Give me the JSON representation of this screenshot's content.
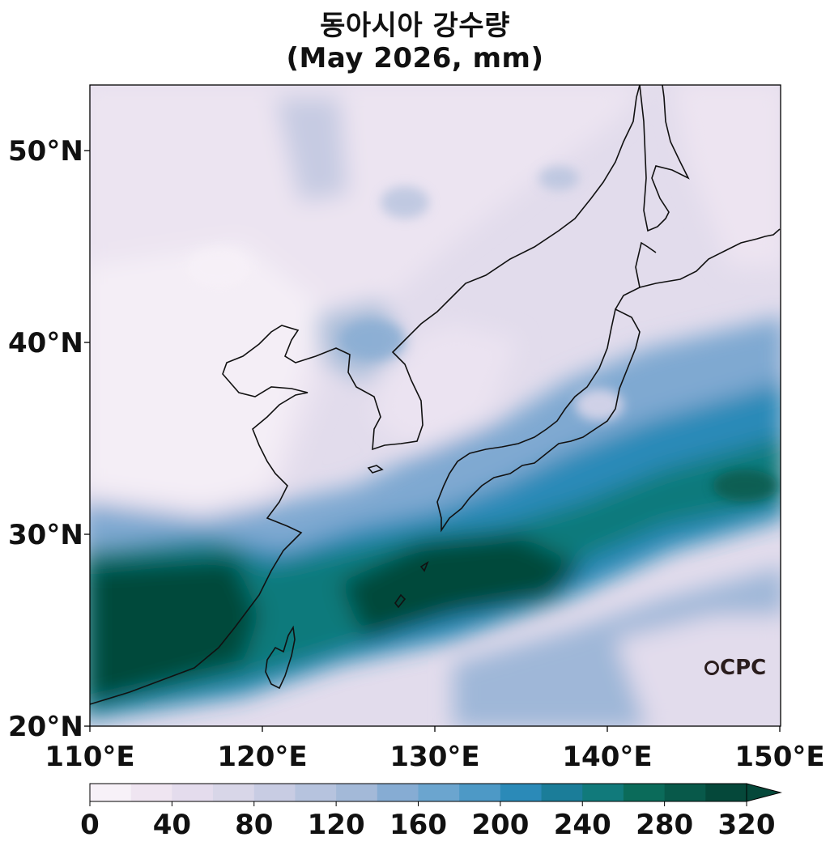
{
  "title": "동아시아 강수량",
  "subtitle": "(May 2026, mm)",
  "logo_text": "CPC",
  "lat_labels": [
    "50°N",
    "40°N",
    "30°N",
    "20°N"
  ],
  "lon_labels": [
    "110°E",
    "120°E",
    "130°E",
    "140°E",
    "150°E"
  ],
  "colorbar": {
    "tick_labels": [
      "0",
      "40",
      "80",
      "120",
      "160",
      "200",
      "240",
      "280",
      "320"
    ],
    "min": 0,
    "max": 320,
    "step": 20,
    "extend": "max",
    "colors": [
      "#f7f1f8",
      "#efe5f1",
      "#e4dced",
      "#d8d6e8",
      "#c8cce3",
      "#b6c3de",
      "#a3b9d8",
      "#86acd3",
      "#6ba5cf",
      "#4d99c6",
      "#2b8ab8",
      "#1b7d99",
      "#117a7b",
      "#0b6b5a",
      "#08594a",
      "#05483a"
    ]
  },
  "map": {
    "region": "East Asia",
    "lon_range": [
      110,
      150
    ],
    "lat_range": [
      20,
      53.4
    ],
    "variable": "precipitation",
    "units": "mm"
  }
}
